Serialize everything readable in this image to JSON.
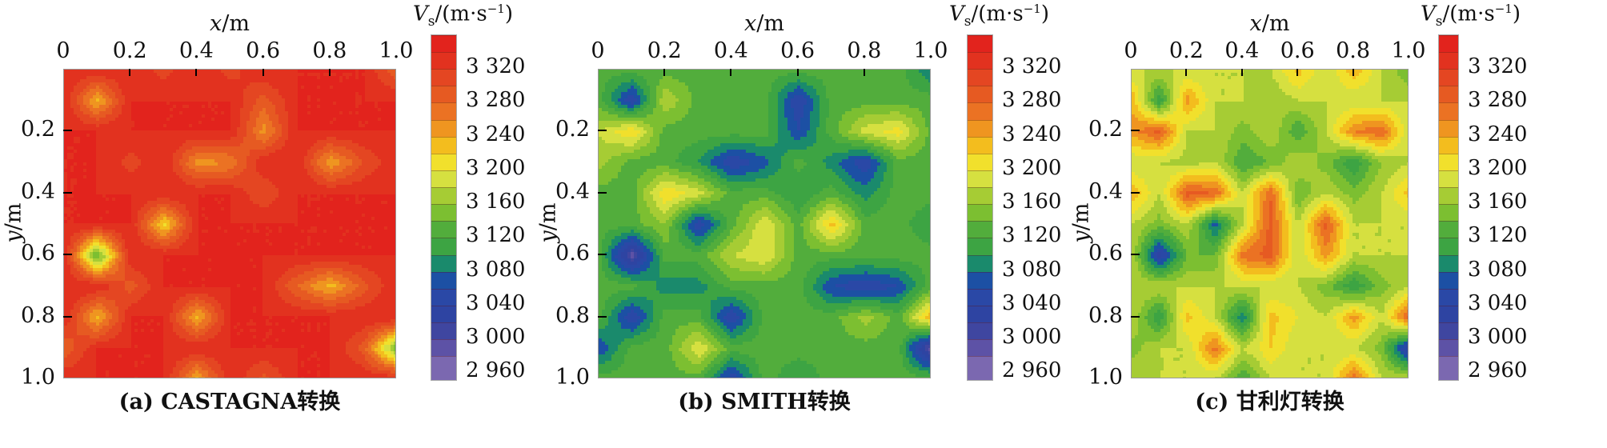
{
  "colorbar": {
    "title_v": "V",
    "title_sub": "s",
    "title_unit": "/(m·s",
    "title_sup": "−1",
    "title_close": ")",
    "range": [
      2950,
      3360
    ],
    "band_start": 2960,
    "band_step": 20,
    "ticks": [
      3320,
      3280,
      3240,
      3200,
      3160,
      3120,
      3080,
      3040,
      3000,
      2960
    ],
    "tick_labels": [
      "3 320",
      "3 280",
      "3 240",
      "3 200",
      "3 160",
      "3 120",
      "3 080",
      "3 040",
      "3 000",
      "2 960"
    ],
    "colors": [
      "#7b68b0",
      "#5d52a6",
      "#3f46a0",
      "#2e44a2",
      "#2a48a6",
      "#1c50a4",
      "#1a8a6c",
      "#3da443",
      "#52ad3c",
      "#7cbf31",
      "#a6cc34",
      "#d6e040",
      "#f1e02c",
      "#f3bd1e",
      "#ef9520",
      "#eb7223",
      "#e65a22",
      "#e44622",
      "#e2321f",
      "#e2231d"
    ]
  },
  "panels": [
    {
      "title": "(a) CASTAGNA转换",
      "xlabel_var": "x",
      "xlabel_unit": "/m",
      "ylabel_var": "y",
      "ylabel_unit": "/m",
      "xtick_labels": [
        "0",
        "0.2",
        "0.4",
        "0.6",
        "0.8",
        "1.0"
      ],
      "ytick_labels": [
        "0.2",
        "0.4",
        "0.6",
        "0.8",
        "1.0"
      ]
    },
    {
      "title": "(b) SMITH转换",
      "xlabel_var": "x",
      "xlabel_unit": "/m",
      "ylabel_var": "y",
      "ylabel_unit": "/m",
      "xtick_labels": [
        "0",
        "0.2",
        "0.4",
        "0.6",
        "0.8",
        "1.0"
      ],
      "ytick_labels": [
        "0.2",
        "0.4",
        "0.6",
        "0.8",
        "1.0"
      ]
    },
    {
      "title": "(c) 甘利灯转换",
      "xlabel_var": "x",
      "xlabel_unit": "/m",
      "ylabel_var": "y",
      "ylabel_unit": "/m",
      "xtick_labels": [
        "0",
        "0.2",
        "0.4",
        "0.6",
        "0.8",
        "1.0"
      ],
      "ytick_labels": [
        "0.2",
        "0.4",
        "0.6",
        "0.8",
        "1.0"
      ]
    }
  ],
  "chart_data": [
    {
      "type": "heatmap",
      "title": "(a) CASTAGNA转换",
      "xlabel": "x/m",
      "ylabel": "y/m",
      "xlim": [
        0,
        1
      ],
      "ylim": [
        0,
        1
      ],
      "grid_step": 0.1,
      "base_value": 3340,
      "nodes": [
        [
          0.1,
          0.1,
          3230
        ],
        [
          0.6,
          0.2,
          3250
        ],
        [
          0.6,
          0.1,
          3290
        ],
        [
          0.4,
          0.3,
          3250
        ],
        [
          0.5,
          0.3,
          3260
        ],
        [
          0.8,
          0.3,
          3240
        ],
        [
          0.9,
          0.3,
          3300
        ],
        [
          0.6,
          0.4,
          3300
        ],
        [
          0.3,
          0.5,
          3210
        ],
        [
          0.1,
          0.6,
          3130
        ],
        [
          0.2,
          0.7,
          3290
        ],
        [
          0.1,
          0.8,
          3230
        ],
        [
          0.4,
          0.8,
          3230
        ],
        [
          0.8,
          0.7,
          3230
        ],
        [
          0.7,
          0.7,
          3280
        ],
        [
          0.9,
          0.7,
          3290
        ],
        [
          1.0,
          0.9,
          3140
        ],
        [
          0.9,
          0.9,
          3290
        ],
        [
          0.0,
          0.9,
          3280
        ],
        [
          0.4,
          1.0,
          3230
        ],
        [
          0.6,
          1.0,
          3290
        ],
        [
          0.2,
          0.3,
          3310
        ],
        [
          0.3,
          0.0,
          3310
        ],
        [
          0.5,
          0.0,
          3310
        ],
        [
          1.0,
          0.0,
          3280
        ]
      ]
    },
    {
      "type": "heatmap",
      "title": "(b) SMITH转换",
      "xlabel": "x/m",
      "ylabel": "y/m",
      "xlim": [
        0,
        1
      ],
      "ylim": [
        0,
        1
      ],
      "grid_step": 0.1,
      "base_value": 3130,
      "nodes": [
        [
          0.1,
          0.1,
          3040
        ],
        [
          0.0,
          0.2,
          3180
        ],
        [
          0.1,
          0.2,
          3220
        ],
        [
          0.2,
          0.1,
          3180
        ],
        [
          0.0,
          0.3,
          3170
        ],
        [
          0.6,
          0.1,
          3040
        ],
        [
          0.6,
          0.2,
          3060
        ],
        [
          0.4,
          0.3,
          3040
        ],
        [
          0.3,
          0.3,
          3100
        ],
        [
          0.5,
          0.3,
          3070
        ],
        [
          0.8,
          0.2,
          3190
        ],
        [
          0.9,
          0.2,
          3210
        ],
        [
          0.8,
          0.3,
          3040
        ],
        [
          0.7,
          0.3,
          3090
        ],
        [
          0.8,
          0.4,
          3090
        ],
        [
          0.2,
          0.4,
          3220
        ],
        [
          0.3,
          0.4,
          3190
        ],
        [
          0.6,
          0.4,
          3100
        ],
        [
          0.3,
          0.5,
          3040
        ],
        [
          0.5,
          0.5,
          3200
        ],
        [
          0.5,
          0.6,
          3200
        ],
        [
          0.7,
          0.5,
          3230
        ],
        [
          0.1,
          0.6,
          2990
        ],
        [
          0.2,
          0.7,
          3090
        ],
        [
          0.3,
          0.7,
          3090
        ],
        [
          0.4,
          0.6,
          3180
        ],
        [
          0.7,
          0.7,
          3060
        ],
        [
          0.8,
          0.7,
          3040
        ],
        [
          0.9,
          0.7,
          3060
        ],
        [
          1.0,
          0.0,
          3080
        ],
        [
          0.1,
          0.8,
          3040
        ],
        [
          0.4,
          0.8,
          3040
        ],
        [
          0.4,
          1.0,
          3040
        ],
        [
          0.3,
          0.9,
          3200
        ],
        [
          0.8,
          0.8,
          3170
        ],
        [
          1.0,
          0.8,
          3240
        ],
        [
          1.0,
          0.9,
          2980
        ],
        [
          0.0,
          0.9,
          3060
        ],
        [
          0.2,
          0.5,
          3160
        ],
        [
          1.0,
          0.5,
          3100
        ],
        [
          0.6,
          1.0,
          3100
        ]
      ]
    },
    {
      "type": "heatmap",
      "title": "(c) 甘利灯转换",
      "xlabel": "x/m",
      "ylabel": "y/m",
      "xlim": [
        0,
        1
      ],
      "ylim": [
        0,
        1
      ],
      "grid_step": 0.1,
      "base_value": 3180,
      "nodes": [
        [
          0.1,
          0.1,
          3100
        ],
        [
          0.0,
          0.1,
          3240
        ],
        [
          0.2,
          0.1,
          3250
        ],
        [
          0.0,
          0.2,
          3250
        ],
        [
          0.1,
          0.2,
          3290
        ],
        [
          0.0,
          0.4,
          3240
        ],
        [
          0.2,
          0.3,
          3170
        ],
        [
          0.4,
          0.2,
          3150
        ],
        [
          0.5,
          0.1,
          3160
        ],
        [
          0.6,
          0.2,
          3120
        ],
        [
          0.4,
          0.3,
          3120
        ],
        [
          0.5,
          0.3,
          3140
        ],
        [
          0.6,
          0.0,
          3230
        ],
        [
          0.8,
          0.0,
          3240
        ],
        [
          0.8,
          0.2,
          3260
        ],
        [
          0.9,
          0.2,
          3280
        ],
        [
          0.8,
          0.3,
          3100
        ],
        [
          0.7,
          0.3,
          3150
        ],
        [
          0.9,
          0.3,
          3160
        ],
        [
          0.8,
          0.4,
          3150
        ],
        [
          1.0,
          0.0,
          3140
        ],
        [
          0.2,
          0.4,
          3290
        ],
        [
          0.3,
          0.4,
          3280
        ],
        [
          0.6,
          0.4,
          3140
        ],
        [
          0.5,
          0.4,
          3280
        ],
        [
          0.5,
          0.5,
          3290
        ],
        [
          0.4,
          0.6,
          3270
        ],
        [
          0.5,
          0.6,
          3290
        ],
        [
          0.7,
          0.5,
          3290
        ],
        [
          0.7,
          0.6,
          3250
        ],
        [
          0.3,
          0.5,
          3070
        ],
        [
          0.1,
          0.5,
          3150
        ],
        [
          0.1,
          0.6,
          3030
        ],
        [
          0.2,
          0.6,
          3140
        ],
        [
          0.3,
          0.6,
          3140
        ],
        [
          0.1,
          0.8,
          3100
        ],
        [
          0.4,
          0.8,
          3080
        ],
        [
          0.3,
          0.9,
          3270
        ],
        [
          0.2,
          0.8,
          3230
        ],
        [
          0.5,
          0.8,
          3230
        ],
        [
          0.8,
          0.7,
          3100
        ],
        [
          0.7,
          0.7,
          3150
        ],
        [
          0.9,
          0.7,
          3150
        ],
        [
          0.8,
          0.8,
          3250
        ],
        [
          1.0,
          0.8,
          3290
        ],
        [
          1.0,
          0.9,
          3020
        ],
        [
          0.9,
          0.9,
          3150
        ],
        [
          0.8,
          1.0,
          3280
        ],
        [
          0.4,
          1.0,
          3120
        ],
        [
          0.0,
          0.9,
          3150
        ],
        [
          1.0,
          0.4,
          3230
        ],
        [
          0.6,
          0.8,
          3200
        ],
        [
          0.5,
          0.9,
          3220
        ]
      ]
    }
  ]
}
